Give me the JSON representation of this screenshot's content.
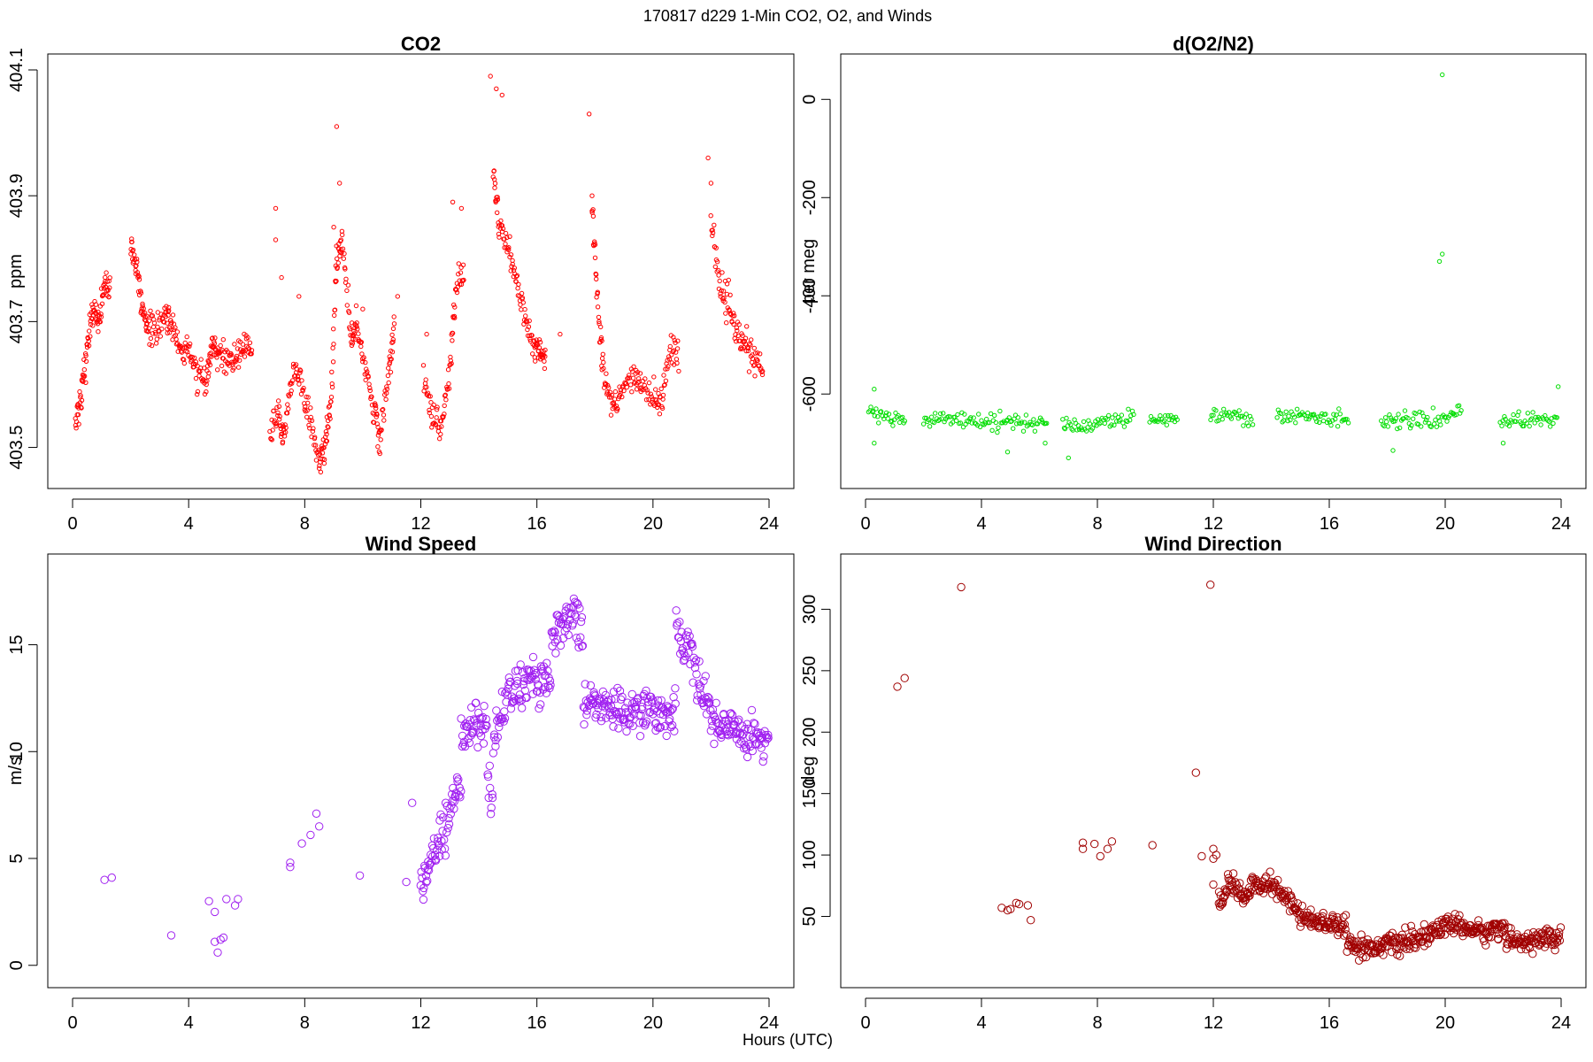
{
  "figure": {
    "suptitle": "170817   d229   1-Min CO2, O2, and Winds",
    "xlabel": "Hours (UTC)"
  },
  "chart_data": [
    {
      "type": "scatter",
      "title": "CO2",
      "xlabel": "",
      "ylabel": "ppm",
      "xlim": [
        0,
        24
      ],
      "ylim": [
        403.46,
        404.1
      ],
      "xticks": [
        0,
        4,
        8,
        12,
        16,
        20,
        24
      ],
      "xtick_labels": [
        "0",
        "4",
        "8",
        "12",
        "16",
        "20",
        "24"
      ],
      "yticks": [
        403.5,
        403.7,
        403.9,
        404.1
      ],
      "ytick_labels": [
        "403.5",
        "403.7",
        "403.9",
        "404.1"
      ],
      "grid": false,
      "color": "#ff0000",
      "marker": "open-circle",
      "anchors": [
        [
          0.1,
          403.54
        ],
        [
          0.3,
          403.58
        ],
        [
          0.5,
          403.66
        ],
        [
          0.7,
          403.72
        ],
        [
          0.9,
          403.7
        ],
        [
          1.1,
          403.76
        ],
        [
          1.3,
          403.75
        ],
        [
          2.0,
          403.82
        ],
        [
          2.2,
          403.79
        ],
        [
          2.4,
          403.72
        ],
        [
          2.6,
          403.69
        ],
        [
          2.9,
          403.69
        ],
        [
          3.2,
          403.71
        ],
        [
          3.4,
          403.7
        ],
        [
          3.7,
          403.66
        ],
        [
          4.0,
          403.65
        ],
        [
          4.3,
          403.61
        ],
        [
          4.6,
          403.6
        ],
        [
          4.8,
          403.67
        ],
        [
          5.0,
          403.65
        ],
        [
          5.3,
          403.64
        ],
        [
          5.6,
          403.64
        ],
        [
          5.9,
          403.66
        ],
        [
          6.2,
          403.66
        ],
        [
          6.8,
          403.52
        ],
        [
          7.1,
          403.55
        ],
        [
          7.3,
          403.52
        ],
        [
          7.6,
          403.63
        ],
        [
          7.9,
          403.6
        ],
        [
          8.2,
          403.54
        ],
        [
          8.5,
          403.48
        ],
        [
          8.7,
          403.5
        ],
        [
          8.9,
          403.57
        ],
        [
          9.1,
          403.8
        ],
        [
          9.3,
          403.83
        ],
        [
          9.6,
          403.66
        ],
        [
          9.8,
          403.7
        ],
        [
          10.1,
          403.62
        ],
        [
          10.4,
          403.56
        ],
        [
          10.6,
          403.51
        ],
        [
          10.9,
          403.62
        ],
        [
          11.1,
          403.7
        ],
        [
          12.1,
          403.62
        ],
        [
          12.4,
          403.55
        ],
        [
          12.7,
          403.53
        ],
        [
          13.0,
          403.62
        ],
        [
          13.2,
          403.75
        ],
        [
          13.5,
          403.78
        ],
        [
          14.5,
          403.94
        ],
        [
          14.7,
          403.85
        ],
        [
          15.0,
          403.82
        ],
        [
          15.3,
          403.76
        ],
        [
          15.6,
          403.7
        ],
        [
          15.9,
          403.66
        ],
        [
          16.1,
          403.66
        ],
        [
          16.3,
          403.64
        ],
        [
          16.9,
          403.65
        ],
        [
          17.9,
          403.88
        ],
        [
          18.1,
          403.73
        ],
        [
          18.3,
          403.62
        ],
        [
          18.6,
          403.56
        ],
        [
          18.9,
          403.58
        ],
        [
          19.3,
          403.62
        ],
        [
          19.6,
          403.6
        ],
        [
          20.0,
          403.58
        ],
        [
          20.3,
          403.57
        ],
        [
          20.6,
          403.66
        ],
        [
          20.9,
          403.65
        ],
        [
          22.0,
          403.86
        ],
        [
          22.3,
          403.76
        ],
        [
          22.6,
          403.72
        ],
        [
          22.9,
          403.68
        ],
        [
          23.2,
          403.66
        ],
        [
          23.5,
          403.64
        ],
        [
          23.8,
          403.62
        ]
      ],
      "outliers": [
        [
          7.0,
          403.88
        ],
        [
          7.0,
          403.83
        ],
        [
          7.2,
          403.77
        ],
        [
          7.8,
          403.74
        ],
        [
          9.1,
          404.01
        ],
        [
          9.2,
          403.92
        ],
        [
          9.0,
          403.85
        ],
        [
          10.0,
          403.72
        ],
        [
          13.1,
          403.89
        ],
        [
          13.4,
          403.88
        ],
        [
          14.4,
          404.09
        ],
        [
          14.6,
          404.07
        ],
        [
          14.8,
          404.06
        ],
        [
          17.8,
          404.03
        ],
        [
          17.9,
          403.9
        ],
        [
          21.9,
          403.96
        ],
        [
          22.0,
          403.92
        ],
        [
          11.2,
          403.74
        ],
        [
          12.2,
          403.68
        ],
        [
          16.8,
          403.68
        ]
      ],
      "obs": {
        "sd": 0.012,
        "per_segment": 16
      }
    },
    {
      "type": "scatter",
      "title": "d(O2/N2)",
      "xlabel": "",
      "ylabel": "per meg",
      "xlim": [
        0,
        24
      ],
      "ylim": [
        -760,
        60
      ],
      "xticks": [
        0,
        4,
        8,
        12,
        16,
        20,
        24
      ],
      "xtick_labels": [
        "0",
        "4",
        "8",
        "12",
        "16",
        "20",
        "24"
      ],
      "yticks": [
        -600,
        -400,
        -200,
        0
      ],
      "ytick_labels": [
        "-600",
        "-400",
        "-200",
        "0"
      ],
      "grid": false,
      "color": "#00dd00",
      "marker": "open-circle",
      "runs": [
        [
          0.1,
          1.4,
          -635,
          -660
        ],
        [
          2.0,
          4.0,
          -650,
          -652
        ],
        [
          4.0,
          6.3,
          -652,
          -662
        ],
        [
          6.8,
          7.7,
          -662,
          -668
        ],
        [
          7.7,
          9.3,
          -660,
          -645
        ],
        [
          9.8,
          10.8,
          -652,
          -648
        ],
        [
          11.9,
          12.4,
          -650,
          -632
        ],
        [
          12.4,
          13.4,
          -640,
          -655
        ],
        [
          14.2,
          16.7,
          -645,
          -650
        ],
        [
          17.8,
          19.8,
          -652,
          -655
        ],
        [
          19.8,
          20.6,
          -652,
          -630
        ],
        [
          21.9,
          23.9,
          -655,
          -650
        ]
      ],
      "outliers": [
        [
          19.9,
          50
        ],
        [
          19.9,
          -315
        ],
        [
          19.8,
          -330
        ],
        [
          0.3,
          -590
        ],
        [
          0.3,
          -700
        ],
        [
          4.9,
          -718
        ],
        [
          6.2,
          -700
        ],
        [
          7.0,
          -730
        ],
        [
          18.2,
          -715
        ],
        [
          22.0,
          -700
        ],
        [
          23.9,
          -585
        ]
      ],
      "obs": {
        "sd": 8,
        "per_hour": 22
      }
    },
    {
      "type": "scatter",
      "title": "Wind Speed",
      "xlabel": "",
      "ylabel": "m/s",
      "xlim": [
        0,
        24
      ],
      "ylim": [
        -0.3,
        18.5
      ],
      "xticks": [
        0,
        4,
        8,
        12,
        16,
        20,
        24
      ],
      "xtick_labels": [
        "0",
        "4",
        "8",
        "12",
        "16",
        "20",
        "24"
      ],
      "yticks": [
        0,
        5,
        10,
        15
      ],
      "ytick_labels": [
        "0",
        "5",
        "10",
        "15"
      ],
      "grid": false,
      "color": "#a020f0",
      "marker": "open-circle",
      "points": [
        [
          1.1,
          4.0
        ],
        [
          1.35,
          4.1
        ],
        [
          3.4,
          1.4
        ],
        [
          4.7,
          3.0
        ],
        [
          4.9,
          2.5
        ],
        [
          4.9,
          1.1
        ],
        [
          5.0,
          0.6
        ],
        [
          5.1,
          1.2
        ],
        [
          5.2,
          1.3
        ],
        [
          5.3,
          3.1
        ],
        [
          5.6,
          2.8
        ],
        [
          5.7,
          3.1
        ],
        [
          7.5,
          4.6
        ],
        [
          7.5,
          4.8
        ],
        [
          7.9,
          5.7
        ],
        [
          8.2,
          6.1
        ],
        [
          8.4,
          7.1
        ],
        [
          8.5,
          6.5
        ],
        [
          9.9,
          4.2
        ],
        [
          11.5,
          3.9
        ],
        [
          11.7,
          7.6
        ]
      ],
      "runs": [
        [
          12.0,
          12.3,
          3.5,
          5.0
        ],
        [
          12.3,
          13.0,
          4.5,
          7.3
        ],
        [
          13.0,
          13.4,
          7.3,
          8.3
        ],
        [
          13.4,
          13.9,
          10.8,
          11.8
        ],
        [
          13.9,
          14.3,
          11.2,
          11.2
        ],
        [
          14.3,
          14.5,
          8.5,
          7.5
        ],
        [
          14.5,
          15.0,
          10.5,
          12.8
        ],
        [
          15.0,
          16.5,
          12.8,
          13.5
        ],
        [
          16.5,
          17.3,
          15.5,
          16.5
        ],
        [
          17.3,
          17.6,
          16.5,
          15.5
        ],
        [
          17.6,
          18.5,
          12.3,
          12.0
        ],
        [
          18.5,
          20.8,
          12.0,
          11.8
        ],
        [
          20.8,
          21.5,
          15.5,
          14.5
        ],
        [
          21.5,
          22.0,
          13.0,
          12.0
        ],
        [
          22.0,
          24.0,
          11.5,
          10.5
        ]
      ],
      "obs": {
        "sd": 0.5,
        "per_hour": 45
      }
    },
    {
      "type": "scatter",
      "title": "Wind Direction",
      "xlabel": "",
      "ylabel": "deg",
      "xlim": [
        0,
        24
      ],
      "ylim": [
        5,
        332
      ],
      "xticks": [
        0,
        4,
        8,
        12,
        16,
        20,
        24
      ],
      "xtick_labels": [
        "0",
        "4",
        "8",
        "12",
        "16",
        "20",
        "24"
      ],
      "yticks": [
        50,
        100,
        150,
        200,
        250,
        300
      ],
      "ytick_labels": [
        "50",
        "100",
        "150",
        "200",
        "250",
        "300"
      ],
      "grid": false,
      "color": "#a00000",
      "marker": "open-circle",
      "points": [
        [
          1.1,
          237
        ],
        [
          1.35,
          244
        ],
        [
          3.3,
          318
        ],
        [
          11.4,
          167
        ],
        [
          11.9,
          320
        ],
        [
          4.7,
          57
        ],
        [
          4.9,
          55
        ],
        [
          5.0,
          56
        ],
        [
          5.2,
          61
        ],
        [
          5.3,
          60
        ],
        [
          5.6,
          59
        ],
        [
          5.7,
          47
        ],
        [
          7.5,
          110
        ],
        [
          7.5,
          105
        ],
        [
          7.9,
          109
        ],
        [
          8.1,
          99
        ],
        [
          8.35,
          105
        ],
        [
          8.5,
          111
        ],
        [
          9.9,
          108
        ],
        [
          11.6,
          99
        ],
        [
          12.0,
          105
        ],
        [
          12.0,
          97
        ],
        [
          12.1,
          100
        ],
        [
          12.0,
          76
        ],
        [
          12.2,
          70
        ]
      ],
      "runs": [
        [
          12.2,
          12.5,
          58,
          72
        ],
        [
          12.5,
          13.0,
          78,
          68
        ],
        [
          13.0,
          13.3,
          62,
          72
        ],
        [
          13.3,
          14.2,
          76,
          76
        ],
        [
          14.2,
          15.0,
          72,
          55
        ],
        [
          15.0,
          16.0,
          50,
          44
        ],
        [
          16.0,
          16.6,
          44,
          44
        ],
        [
          16.6,
          17.3,
          30,
          22
        ],
        [
          17.3,
          19.0,
          25,
          30
        ],
        [
          19.0,
          20.0,
          32,
          40
        ],
        [
          20.0,
          21.6,
          45,
          35
        ],
        [
          21.6,
          22.1,
          42,
          40
        ],
        [
          22.1,
          24.0,
          30,
          32
        ]
      ],
      "obs": {
        "sd": 4,
        "per_hour": 45
      }
    }
  ]
}
